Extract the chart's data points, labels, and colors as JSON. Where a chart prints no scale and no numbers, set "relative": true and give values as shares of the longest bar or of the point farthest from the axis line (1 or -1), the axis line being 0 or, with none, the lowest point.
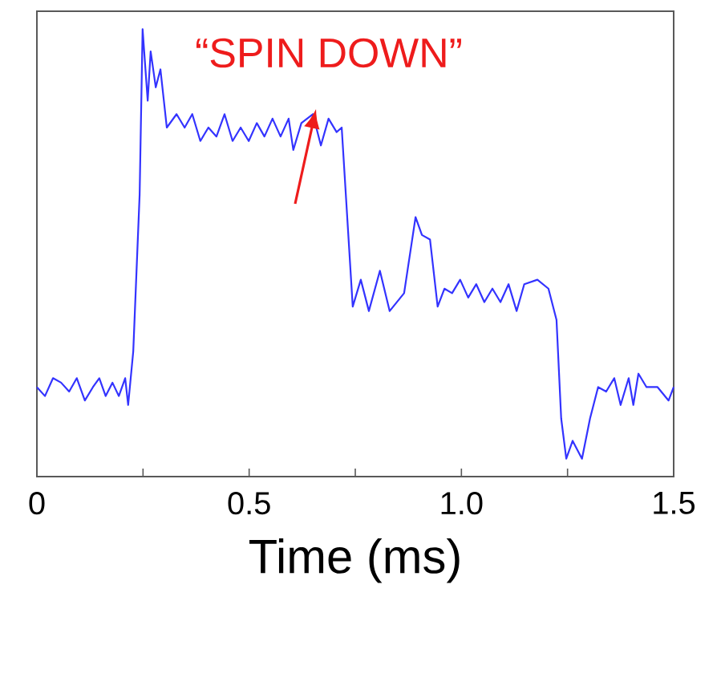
{
  "chart_data": {
    "type": "line",
    "relative": true,
    "xlabel": "Time (ms)",
    "xlim": [
      0,
      1.5
    ],
    "xticks": [
      0,
      {
        "value": 0.25,
        "label": null
      },
      0.5,
      {
        "value": 0.75,
        "label": null
      },
      {
        "value": 1,
        "label": "1.0"
      },
      {
        "value": 1.25,
        "label": null
      },
      1.5
    ],
    "series": [
      {
        "color": "#3333ff",
        "x": [
          0,
          0.019,
          0.038,
          0.057,
          0.076,
          0.094,
          0.113,
          0.132,
          0.147,
          0.162,
          0.178,
          0.193,
          0.208,
          0.215,
          0.227,
          0.242,
          0.249,
          0.261,
          0.268,
          0.28,
          0.291,
          0.306,
          0.329,
          0.348,
          0.366,
          0.385,
          0.404,
          0.423,
          0.442,
          0.461,
          0.48,
          0.499,
          0.518,
          0.536,
          0.555,
          0.574,
          0.593,
          0.604,
          0.623,
          0.65,
          0.669,
          0.687,
          0.706,
          0.718,
          0.744,
          0.763,
          0.782,
          0.808,
          0.831,
          0.865,
          0.892,
          0.907,
          0.926,
          0.944,
          0.96,
          0.978,
          0.997,
          1.016,
          1.035,
          1.054,
          1.073,
          1.092,
          1.111,
          1.13,
          1.148,
          1.179,
          1.205,
          1.224,
          1.235,
          1.247,
          1.262,
          1.284,
          1.303,
          1.322,
          1.341,
          1.36,
          1.375,
          1.394,
          1.405,
          1.417,
          1.436,
          1.462,
          1.488,
          1.5
        ],
        "values": [
          0.2,
          0.18,
          0.22,
          0.21,
          0.19,
          0.22,
          0.17,
          0.2,
          0.22,
          0.18,
          0.21,
          0.18,
          0.22,
          0.16,
          0.28,
          0.63,
          1.0,
          0.84,
          0.95,
          0.87,
          0.91,
          0.78,
          0.81,
          0.78,
          0.81,
          0.75,
          0.78,
          0.76,
          0.81,
          0.75,
          0.78,
          0.75,
          0.79,
          0.76,
          0.8,
          0.76,
          0.8,
          0.73,
          0.79,
          0.81,
          0.74,
          0.8,
          0.77,
          0.78,
          0.38,
          0.44,
          0.37,
          0.46,
          0.37,
          0.41,
          0.58,
          0.54,
          0.53,
          0.38,
          0.42,
          0.41,
          0.44,
          0.4,
          0.43,
          0.39,
          0.42,
          0.39,
          0.43,
          0.37,
          0.43,
          0.44,
          0.42,
          0.35,
          0.13,
          0.04,
          0.08,
          0.04,
          0.13,
          0.2,
          0.19,
          0.22,
          0.16,
          0.22,
          0.16,
          0.23,
          0.2,
          0.2,
          0.17,
          0.2
        ]
      }
    ],
    "annotations": [
      "“SPIN DOWN”"
    ]
  }
}
